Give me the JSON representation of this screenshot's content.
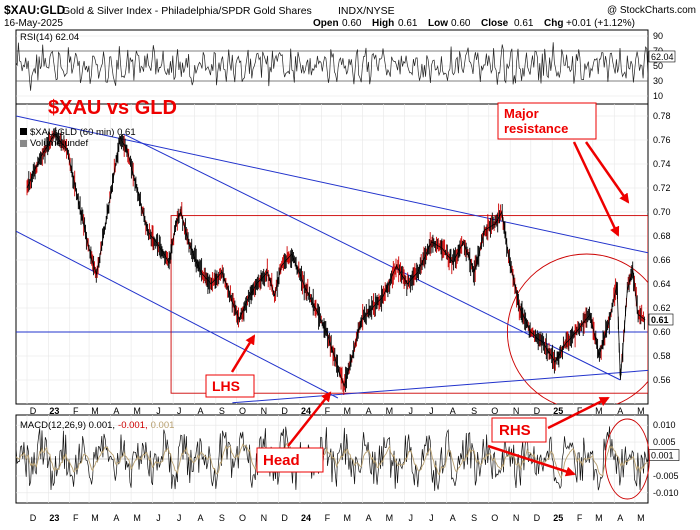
{
  "header": {
    "symbol": "$XAU:GLD",
    "description": "Gold & Silver Index - Philadelphia/SPDR Gold Shares",
    "exchange": "INDX/NYSE",
    "copyright": "@ StockCharts.com",
    "date": "16-May-2025",
    "open_label": "Open",
    "open": "0.60",
    "high_label": "High",
    "high": "0.61",
    "low_label": "Low",
    "low": "0.60",
    "close_label": "Close",
    "close": "0.61",
    "chg_label": "Chg",
    "chg": "+0.01 (+1.12%)"
  },
  "annotations": {
    "title": "$XAU vs GLD",
    "major_resistance": "Major\nresistance",
    "lhs": "LHS",
    "head": "Head",
    "rhs": "RHS"
  },
  "colors": {
    "price": "#000000",
    "price_down": "#cc0000",
    "trendline": "#2233cc",
    "box": "#cc0000",
    "arrow": "#ee0000",
    "title": "#ee0000",
    "rsi_fill": "#d9d9d9",
    "macd_signal": "#b8a070",
    "grid": "#e6e6e6"
  },
  "chart_data": [
    {
      "type": "line",
      "panel": "rsi",
      "title": "RSI(14) 62.04",
      "current": 62.04,
      "y_ticks": [
        10,
        30,
        50,
        70,
        90
      ],
      "ylim": [
        10,
        90
      ],
      "reference_levels": [
        30,
        70
      ]
    },
    {
      "type": "line",
      "panel": "price",
      "title": "$XAU:GLD (60 min) 0.61",
      "legend": [
        "$XAU:GLD (60 min) 0.61",
        "Volume undef"
      ],
      "last_value": 0.61,
      "ylim": [
        0.54,
        0.79
      ],
      "y_ticks": [
        0.56,
        0.58,
        0.6,
        0.62,
        0.64,
        0.66,
        0.68,
        0.7,
        0.72,
        0.74,
        0.76,
        0.78
      ],
      "x_labels": [
        "D",
        "23",
        "F",
        "M",
        "A",
        "M",
        "J",
        "J",
        "A",
        "S",
        "O",
        "N",
        "D",
        "24",
        "F",
        "M",
        "A",
        "M",
        "J",
        "J",
        "A",
        "S",
        "O",
        "N",
        "D",
        "25",
        "F",
        "M",
        "A",
        "M"
      ],
      "horizontal_line": 0.6,
      "series": [
        {
          "name": "$XAU:GLD",
          "points": [
            [
              "2022-12-01",
              0.72
            ],
            [
              "2022-12-20",
              0.745
            ],
            [
              "2023-01-10",
              0.765
            ],
            [
              "2023-01-28",
              0.752
            ],
            [
              "2023-02-15",
              0.705
            ],
            [
              "2023-03-05",
              0.66
            ],
            [
              "2023-03-12",
              0.648
            ],
            [
              "2023-03-28",
              0.7
            ],
            [
              "2023-04-15",
              0.762
            ],
            [
              "2023-04-25",
              0.752
            ],
            [
              "2023-05-10",
              0.718
            ],
            [
              "2023-05-25",
              0.684
            ],
            [
              "2023-06-10",
              0.672
            ],
            [
              "2023-06-25",
              0.658
            ],
            [
              "2023-07-05",
              0.69
            ],
            [
              "2023-07-12",
              0.7
            ],
            [
              "2023-07-25",
              0.672
            ],
            [
              "2023-08-10",
              0.65
            ],
            [
              "2023-08-25",
              0.64
            ],
            [
              "2023-09-10",
              0.65
            ],
            [
              "2023-09-25",
              0.625
            ],
            [
              "2023-10-05",
              0.61
            ],
            [
              "2023-10-15",
              0.625
            ],
            [
              "2023-10-30",
              0.64
            ],
            [
              "2023-11-15",
              0.65
            ],
            [
              "2023-11-25",
              0.63
            ],
            [
              "2023-12-05",
              0.655
            ],
            [
              "2023-12-20",
              0.665
            ],
            [
              "2024-01-10",
              0.635
            ],
            [
              "2024-01-25",
              0.618
            ],
            [
              "2024-02-10",
              0.598
            ],
            [
              "2024-02-25",
              0.57
            ],
            [
              "2024-03-05",
              0.555
            ],
            [
              "2024-03-15",
              0.575
            ],
            [
              "2024-03-30",
              0.61
            ],
            [
              "2024-04-15",
              0.62
            ],
            [
              "2024-05-01",
              0.63
            ],
            [
              "2024-05-20",
              0.655
            ],
            [
              "2024-06-05",
              0.64
            ],
            [
              "2024-06-20",
              0.65
            ],
            [
              "2024-07-10",
              0.675
            ],
            [
              "2024-07-25",
              0.67
            ],
            [
              "2024-08-10",
              0.658
            ],
            [
              "2024-08-25",
              0.675
            ],
            [
              "2024-09-10",
              0.65
            ],
            [
              "2024-09-25",
              0.685
            ],
            [
              "2024-10-10",
              0.69
            ],
            [
              "2024-10-20",
              0.7
            ],
            [
              "2024-10-30",
              0.662
            ],
            [
              "2024-11-15",
              0.62
            ],
            [
              "2024-12-01",
              0.6
            ],
            [
              "2024-12-20",
              0.59
            ],
            [
              "2025-01-05",
              0.575
            ],
            [
              "2025-01-20",
              0.59
            ],
            [
              "2025-02-05",
              0.6
            ],
            [
              "2025-02-25",
              0.615
            ],
            [
              "2025-03-10",
              0.58
            ],
            [
              "2025-03-25",
              0.61
            ],
            [
              "2025-04-05",
              0.64
            ],
            [
              "2025-04-10",
              0.56
            ],
            [
              "2025-04-20",
              0.635
            ],
            [
              "2025-04-28",
              0.652
            ],
            [
              "2025-05-05",
              0.615
            ],
            [
              "2025-05-16",
              0.61
            ]
          ]
        }
      ],
      "trendlines": [
        {
          "name": "upper-resistance",
          "from": [
            "2022-11-15",
            0.78
          ],
          "to": [
            "2025-05-20",
            0.666
          ]
        },
        {
          "name": "mid-down-channel",
          "from": [
            "2023-04-20",
            0.765
          ],
          "to": [
            "2025-04-10",
            0.56
          ]
        },
        {
          "name": "lower-down-channel",
          "from": [
            "2022-11-15",
            0.684
          ],
          "to": [
            "2024-02-25",
            0.545
          ]
        },
        {
          "name": "neckline",
          "from": [
            "2023-09-25",
            0.541
          ],
          "to": [
            "2025-05-20",
            0.568
          ]
        }
      ],
      "box": {
        "from": [
          "2023-06-28",
          0.697
        ],
        "to": [
          "2025-05-20",
          0.549
        ]
      },
      "circle": {
        "center": [
          "2025-02-20",
          0.6
        ],
        "rx_days": 115,
        "ry": 0.065
      }
    },
    {
      "type": "line",
      "panel": "macd",
      "title": "MACD(12,26,9) 0.001, -0.001, 0.001",
      "title_parts": [
        "MACD(12,26,9) 0.001,",
        "-0.001,",
        "0.001"
      ],
      "current": 0.001,
      "ylim": [
        -0.013,
        0.013
      ],
      "y_ticks": [
        0.01,
        0.005,
        -0.005,
        -0.01
      ],
      "y_tick_labels": [
        "0.010",
        "0.005",
        "-0.005",
        "-0.010"
      ],
      "x_labels": [
        "D",
        "23",
        "F",
        "M",
        "A",
        "M",
        "J",
        "J",
        "A",
        "S",
        "O",
        "N",
        "D",
        "24",
        "F",
        "M",
        "A",
        "M",
        "J",
        "J",
        "A",
        "S",
        "O",
        "N",
        "D",
        "25",
        "F",
        "M",
        "A",
        "M"
      ]
    }
  ]
}
